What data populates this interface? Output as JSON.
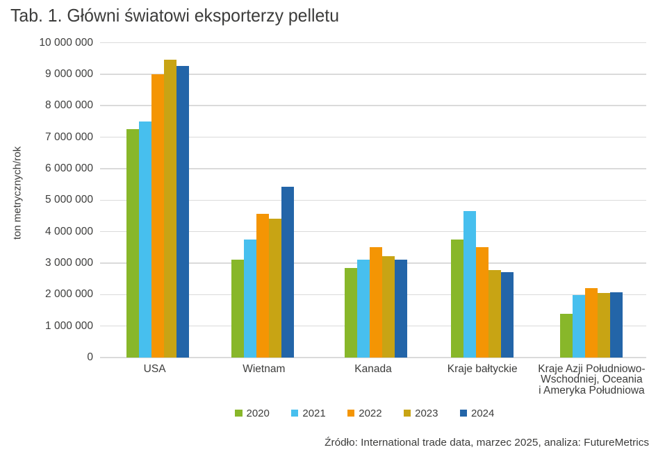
{
  "page": {
    "background": "#ffffff",
    "text_color": "#3c3c3b",
    "gridline_color": "#dadada"
  },
  "chart_data": {
    "type": "bar",
    "title": "Tab. 1. Główni światowi eksporterzy pelletu",
    "xlabel": "",
    "ylabel": "ton metrycznych/rok",
    "ylim": [
      0,
      10000000
    ],
    "ytick_step": 1000000,
    "ytick_labels": [
      "0",
      "1 000 000",
      "2 000 000",
      "3 000 000",
      "4 000 000",
      "5 000 000",
      "6 000 000",
      "7 000 000",
      "8 000 000",
      "9 000 000",
      "10 000 000"
    ],
    "grid": true,
    "legend_position": "bottom",
    "categories": [
      "USA",
      "Wietnam",
      "Kanada",
      "Kraje bałtyckie",
      "Kraje Azji Południowo-Wschodniej, Oceania i Ameryka Południowa"
    ],
    "categories_wrapped": [
      "USA",
      "Wietnam",
      "Kanada",
      "Kraje bałtyckie",
      "Kraje Azji Południowo-\nWschodniej, Oceania\ni Ameryka Południowa"
    ],
    "series": [
      {
        "name": "2020",
        "color": "#88b72a",
        "values": [
          7250000,
          3100000,
          2850000,
          3750000,
          1400000
        ]
      },
      {
        "name": "2021",
        "color": "#47bfee",
        "values": [
          7500000,
          3750000,
          3100000,
          4650000,
          1980000
        ]
      },
      {
        "name": "2022",
        "color": "#f49504",
        "values": [
          9000000,
          4570000,
          3500000,
          3500000,
          2210000
        ]
      },
      {
        "name": "2023",
        "color": "#c8a414",
        "values": [
          9450000,
          4400000,
          3220000,
          2780000,
          2060000
        ]
      },
      {
        "name": "2024",
        "color": "#2365a8",
        "values": [
          9270000,
          5420000,
          3120000,
          2720000,
          2080000
        ]
      }
    ],
    "source": "Źródło: International trade data, marzec 2025, analiza: FutureMetrics"
  }
}
